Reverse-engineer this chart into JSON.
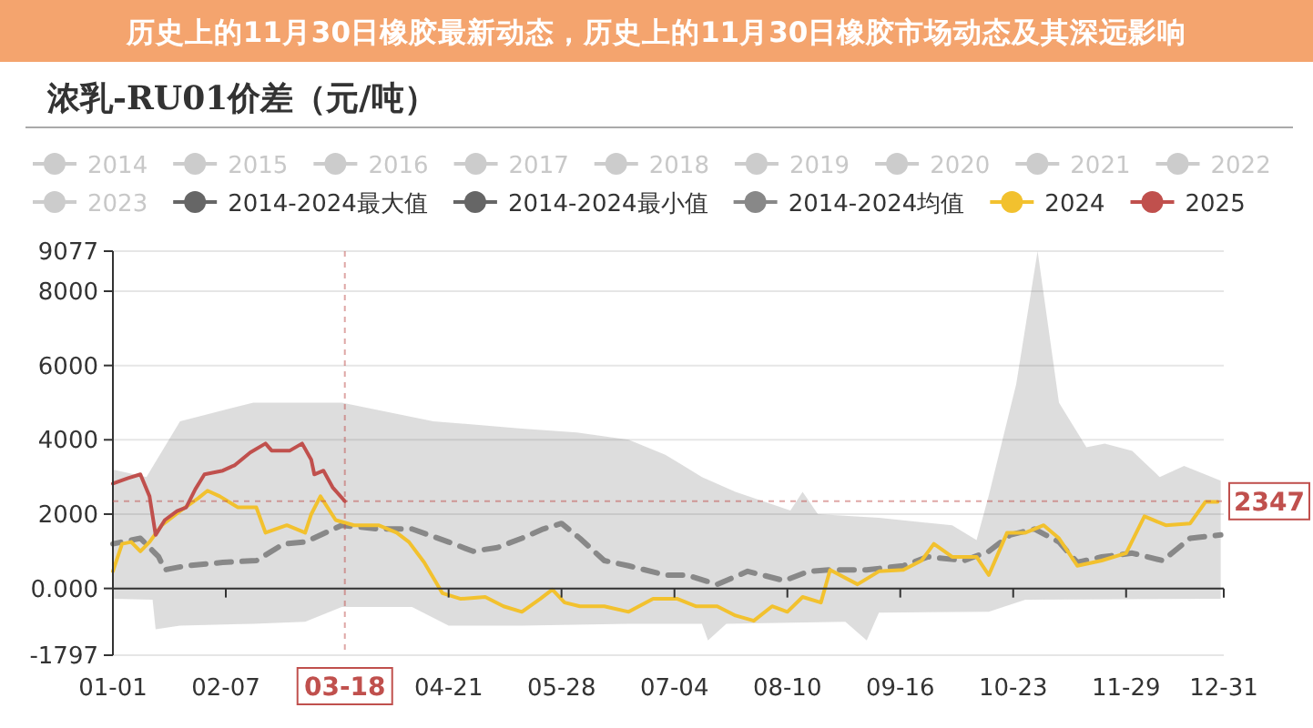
{
  "chart_data": {
    "type": "line",
    "title": "浓乳-RU01价差（元/吨）",
    "annotations": [
      "历史上的11月30日橡胶最新动态，历史上的11月30日橡胶市场动态及其深远影响"
    ],
    "xlim": [
      "--01-01",
      "--12-31"
    ],
    "xticks": [
      {
        "value": "--01-01",
        "label": "01-01"
      },
      {
        "value": "--02-07",
        "label": "02-07"
      },
      {
        "value": "--04-21",
        "label": "04-21"
      },
      {
        "value": "--05-28",
        "label": "05-28"
      },
      {
        "value": "--07-04",
        "label": "07-04"
      },
      {
        "value": "--08-10",
        "label": "08-10"
      },
      {
        "value": "--09-16",
        "label": "09-16"
      },
      {
        "value": "--10-23",
        "label": "10-23"
      },
      {
        "value": "--11-29",
        "label": "11-29"
      },
      {
        "value": "--12-31",
        "label": "12-31"
      }
    ],
    "ylim": [
      -1797,
      9077
    ],
    "yticks": [
      -1797,
      {
        "value": 0,
        "label": "0.000"
      },
      2000,
      4000,
      6000,
      8000,
      9077
    ],
    "grid": "y",
    "legend": "top",
    "ref_lines": [
      {
        "axis": "x",
        "value": "--03-18",
        "label": "03-18",
        "color": "#c0504d"
      },
      {
        "axis": "y",
        "value": 2347,
        "label": "2347",
        "color": "#c0504d"
      }
    ],
    "series": [
      {
        "name": "2014",
        "color": "#cccccc"
      },
      {
        "name": "2015",
        "color": "#cccccc"
      },
      {
        "name": "2016",
        "color": "#cccccc"
      },
      {
        "name": "2017",
        "color": "#cccccc"
      },
      {
        "name": "2018",
        "color": "#cccccc"
      },
      {
        "name": "2019",
        "color": "#cccccc"
      },
      {
        "name": "2020",
        "color": "#cccccc"
      },
      {
        "name": "2021",
        "color": "#cccccc"
      },
      {
        "name": "2022",
        "color": "#cccccc"
      },
      {
        "name": "2023",
        "color": "#cccccc"
      },
      {
        "name": "2014-2024最大值",
        "type": "area",
        "color": "#666666",
        "x": [
          "--01-01",
          "--01-12",
          "--01-23",
          "--02-16",
          "--03-17",
          "--04-16",
          "--05-15",
          "--06-02",
          "--06-19",
          "--07-01",
          "--07-13",
          "--07-24",
          "--08-11",
          "--08-15",
          "--08-20",
          "--09-09",
          "--10-03",
          "--10-11",
          "--10-15",
          "--10-24",
          "--10-31",
          "--11-07",
          "--11-16",
          "--11-22",
          "--12-01",
          "--12-10",
          "--12-18",
          "--12-30"
        ],
        "values": [
          3200,
          3000,
          4500,
          5000,
          5000,
          4500,
          4300,
          4200,
          4000,
          3600,
          3000,
          2600,
          2100,
          2600,
          2000,
          1900,
          1700,
          1300,
          2500,
          5500,
          9077,
          5000,
          3800,
          3900,
          3700,
          3000,
          3300,
          2900
        ]
      },
      {
        "name": "2014-2024最小值",
        "type": "area",
        "color": "#666666",
        "x": [
          "--01-01",
          "--01-14",
          "--01-15",
          "--01-23",
          "--02-16",
          "--03-05",
          "--03-17",
          "--04-09",
          "--04-21",
          "--05-15",
          "--06-19",
          "--07-13",
          "--07-15",
          "--07-21",
          "--08-29",
          "--09-05",
          "--09-09",
          "--10-15",
          "--10-27",
          "--12-30"
        ],
        "values": [
          -280,
          -300,
          -1100,
          -1000,
          -950,
          -900,
          -500,
          -500,
          -1000,
          -1000,
          -950,
          -950,
          -1400,
          -950,
          -900,
          -1400,
          -650,
          -630,
          -300,
          -280
        ]
      },
      {
        "name": "2014-2024均值",
        "line_style": "dashed",
        "color": "#888888",
        "x": [
          "--01-01",
          "--01-10",
          "--01-16",
          "--01-18",
          "--01-25",
          "--02-06",
          "--02-17",
          "--02-26",
          "--03-05",
          "--03-17",
          "--03-29",
          "--04-09",
          "--04-21",
          "--04-29",
          "--05-07",
          "--05-15",
          "--05-22",
          "--05-28",
          "--06-03",
          "--06-11",
          "--06-19",
          "--07-01",
          "--07-08",
          "--07-18",
          "--07-28",
          "--08-09",
          "--08-17",
          "--08-24",
          "--09-05",
          "--09-17",
          "--09-25",
          "--10-07",
          "--10-15",
          "--10-22",
          "--10-30",
          "--11-07",
          "--11-13",
          "--11-21",
          "--12-01",
          "--12-11",
          "--12-20",
          "--12-30"
        ],
        "values": [
          1200,
          1350,
          850,
          500,
          610,
          700,
          750,
          1200,
          1250,
          1700,
          1600,
          1600,
          1250,
          1000,
          1100,
          1350,
          1600,
          1750,
          1350,
          750,
          610,
          360,
          360,
          110,
          460,
          210,
          460,
          500,
          500,
          610,
          850,
          750,
          1000,
          1440,
          1600,
          1250,
          700,
          850,
          950,
          750,
          1350,
          1440
        ]
      },
      {
        "name": "2024",
        "color": "#f2c12e",
        "x": [
          "--01-01",
          "--01-04",
          "--01-07",
          "--01-10",
          "--01-13",
          "--01-17",
          "--01-23",
          "--01-29",
          "--02-01",
          "--02-05",
          "--02-11",
          "--02-17",
          "--02-20",
          "--02-27",
          "--03-05",
          "--03-07",
          "--03-10",
          "--03-15",
          "--03-21",
          "--03-29",
          "--04-04",
          "--04-08",
          "--04-13",
          "--04-19",
          "--04-25",
          "--05-03",
          "--05-09",
          "--05-15",
          "--05-21",
          "--05-25",
          "--05-29",
          "--06-03",
          "--06-11",
          "--06-19",
          "--06-27",
          "--07-05",
          "--07-11",
          "--07-18",
          "--07-24",
          "--07-30",
          "--08-05",
          "--08-10",
          "--08-15",
          "--08-21",
          "--08-24",
          "--09-02",
          "--09-09",
          "--09-17",
          "--09-23",
          "--09-27",
          "--10-03",
          "--10-11",
          "--10-15",
          "--10-21",
          "--10-27",
          "--11-02",
          "--11-07",
          "--11-13",
          "--11-21",
          "--11-29",
          "--12-05",
          "--12-12",
          "--12-20",
          "--12-25",
          "--12-29"
        ],
        "values": [
          460,
          1200,
          1250,
          1000,
          1250,
          1700,
          2080,
          2430,
          2630,
          2480,
          2180,
          2180,
          1500,
          1700,
          1500,
          2000,
          2480,
          1840,
          1700,
          1700,
          1500,
          1250,
          700,
          -130,
          -280,
          -230,
          -480,
          -630,
          -280,
          -30,
          -380,
          -480,
          -480,
          -630,
          -280,
          -280,
          -480,
          -480,
          -730,
          -870,
          -480,
          -630,
          -230,
          -380,
          500,
          110,
          460,
          500,
          750,
          1200,
          850,
          850,
          360,
          1500,
          1500,
          1700,
          1350,
          610,
          750,
          950,
          1940,
          1700,
          1750,
          2330,
          2330
        ]
      },
      {
        "name": "2025",
        "color": "#c0504d",
        "x": [
          "--01-01",
          "--01-06",
          "--01-10",
          "--01-13",
          "--01-15",
          "--01-18",
          "--01-22",
          "--01-25",
          "--01-28",
          "--01-31",
          "--02-06",
          "--02-10",
          "--02-15",
          "--02-20",
          "--02-22",
          "--02-28",
          "--03-04",
          "--03-07",
          "--03-08",
          "--03-11",
          "--03-14",
          "--03-18"
        ],
        "values": [
          2820,
          2970,
          3070,
          2480,
          1440,
          1840,
          2080,
          2180,
          2670,
          3070,
          3170,
          3320,
          3660,
          3900,
          3710,
          3710,
          3900,
          3460,
          3070,
          3170,
          2720,
          2347
        ]
      }
    ]
  }
}
